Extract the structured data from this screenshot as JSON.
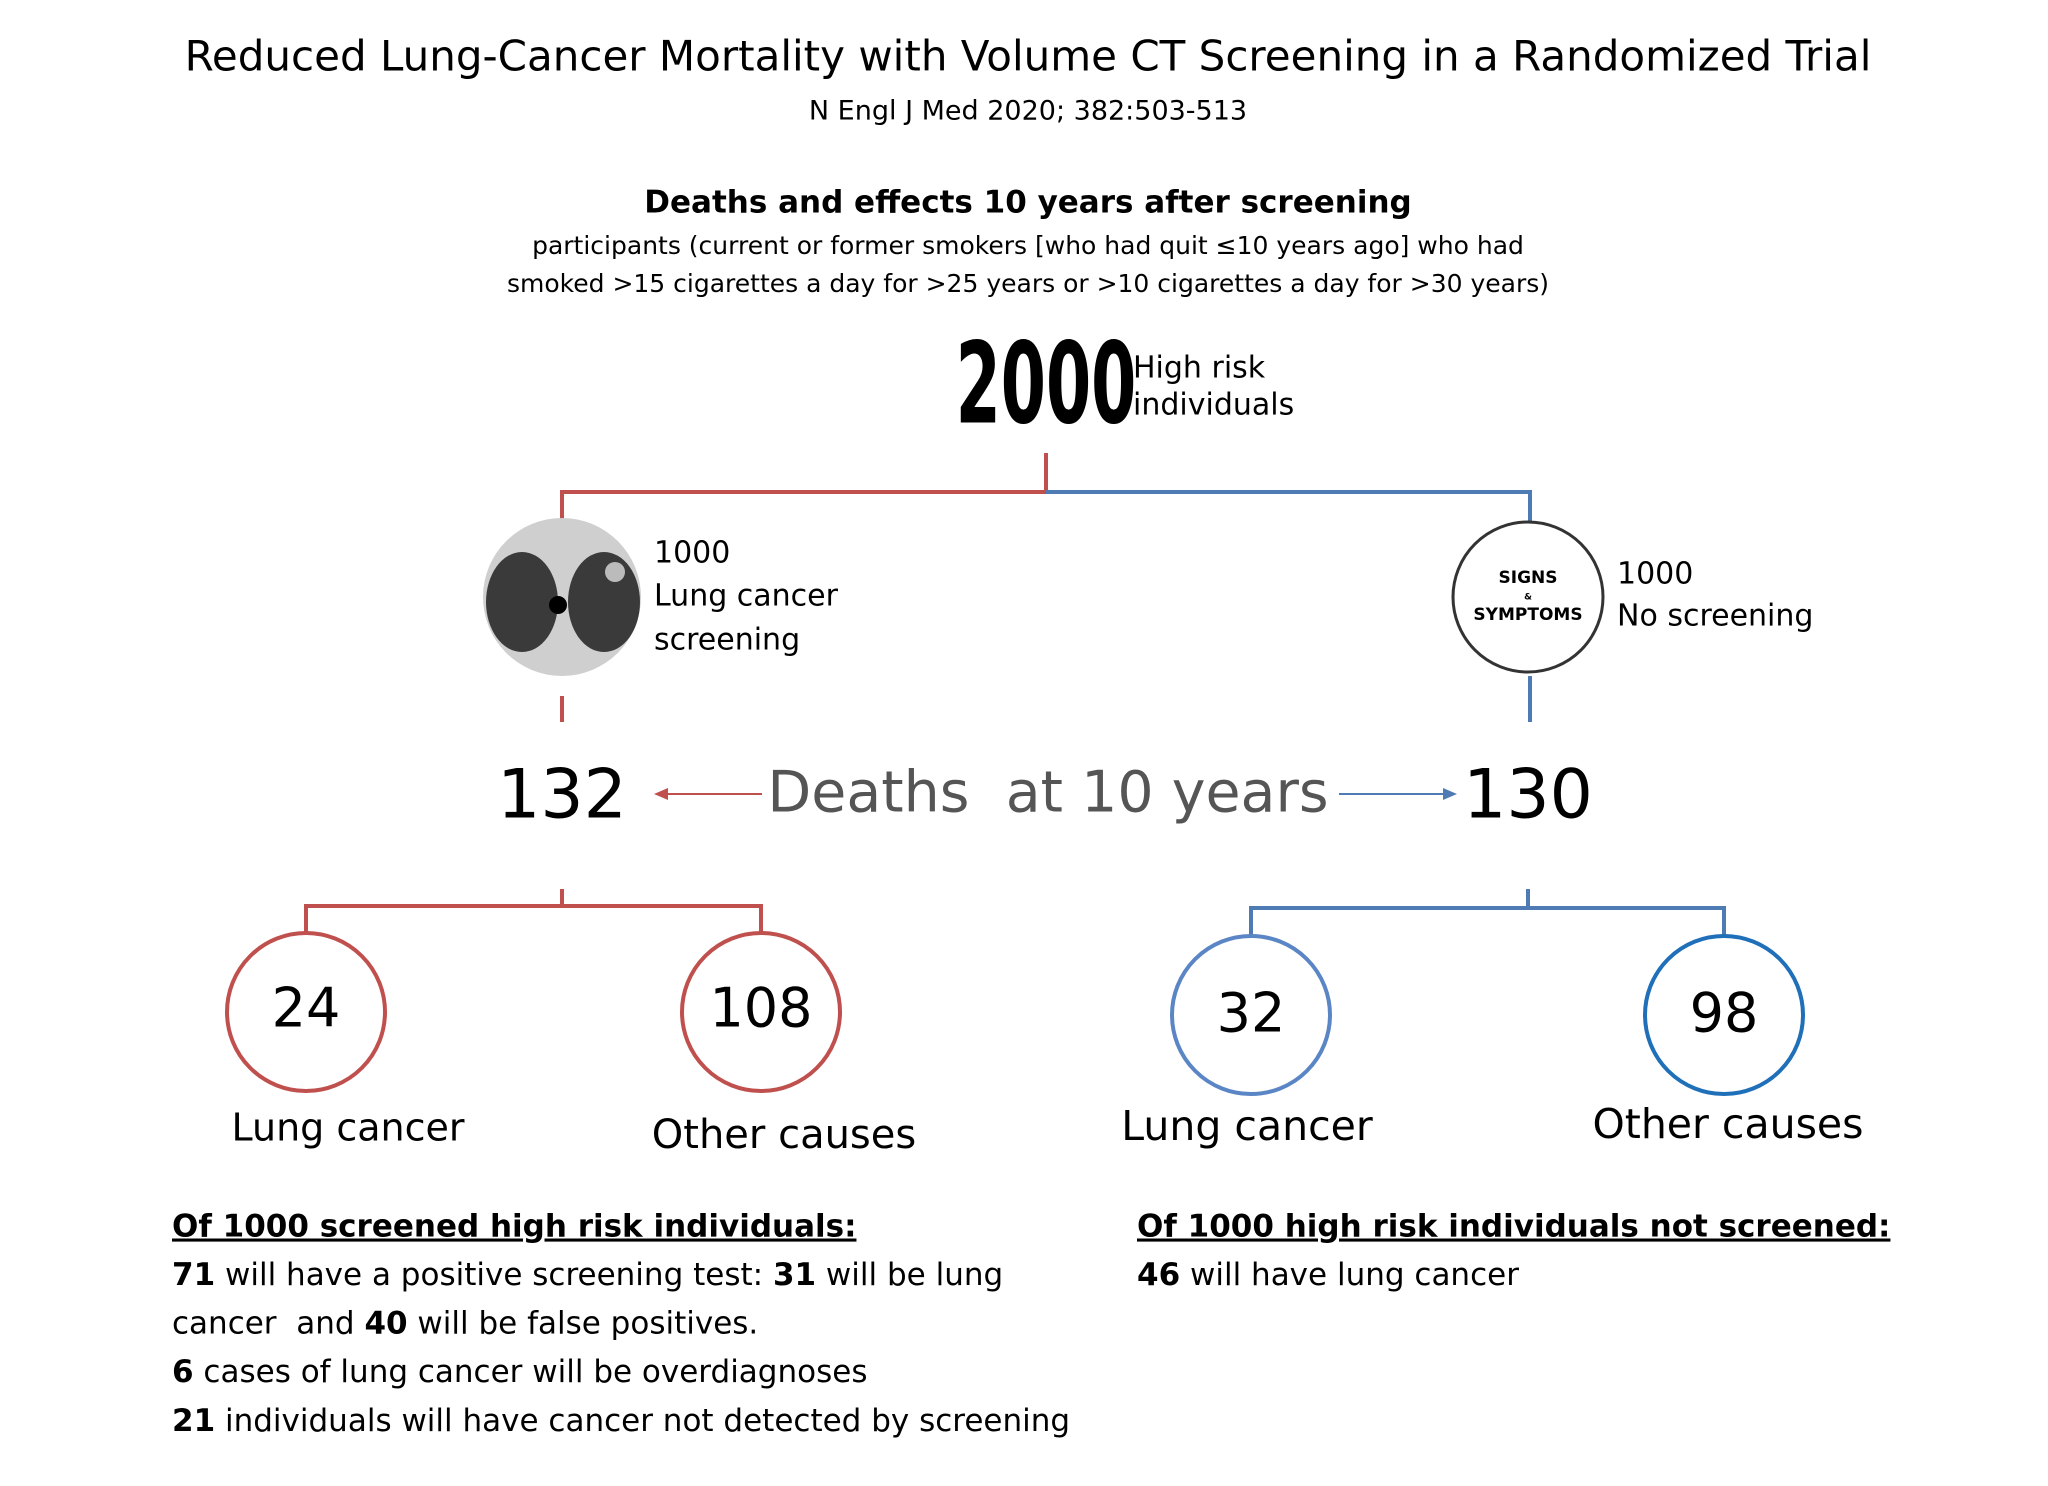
{
  "header": {
    "title": "Reduced Lung-Cancer Mortality with Volume CT Screening in a Randomized Trial",
    "citation": "N Engl J Med 2020; 382:503-513"
  },
  "summary": {
    "heading": "Deaths and effects 10 years after screening",
    "description": [
      "participants (current or former smokers [who had quit ≤10 years ago] who had",
      "smoked >15 cigarettes a day for >25 years or >10 cigarettes a day for >30 years)"
    ]
  },
  "root": {
    "count": 2000,
    "label": [
      "High risk",
      "individuals"
    ]
  },
  "screened": {
    "count": 1000,
    "label": [
      "Lung cancer",
      "screening"
    ],
    "deaths": 132,
    "breakdown": [
      {
        "count": 24,
        "label": "Lung cancer"
      },
      {
        "count": 108,
        "label": "Other causes"
      }
    ]
  },
  "unscreened": {
    "count": 1000,
    "label": [
      "No screening"
    ],
    "icon": [
      "SIGNS",
      "&",
      "SYMPTOMS"
    ],
    "deaths": 130,
    "breakdown": [
      {
        "count": 32,
        "label": "Lung cancer"
      },
      {
        "count": 98,
        "label": "Other causes"
      }
    ]
  },
  "deaths_label": "Deaths  at 10 years",
  "notes": [
    {
      "heading": "Of 1000 screened high risk individuals:",
      "lines": [
        [
          {
            "bold": "71"
          },
          {
            "text": " will have a positive screening test: "
          },
          {
            "bold": "31"
          },
          {
            "text": " will be lung"
          }
        ],
        [
          {
            "text": "cancer  and "
          },
          {
            "bold": "40"
          },
          {
            "text": " will be false positives."
          }
        ],
        [
          {
            "bold": "6"
          },
          {
            "text": " cases of lung cancer will be overdiagnoses"
          }
        ],
        [
          {
            "bold": "21"
          },
          {
            "text": " individuals will have cancer not detected by screening"
          }
        ]
      ]
    },
    {
      "heading": "Of 1000 high risk individuals not screened:",
      "lines": [
        [
          {
            "bold": "46"
          },
          {
            "text": " will have lung cancer"
          }
        ]
      ]
    }
  ]
}
